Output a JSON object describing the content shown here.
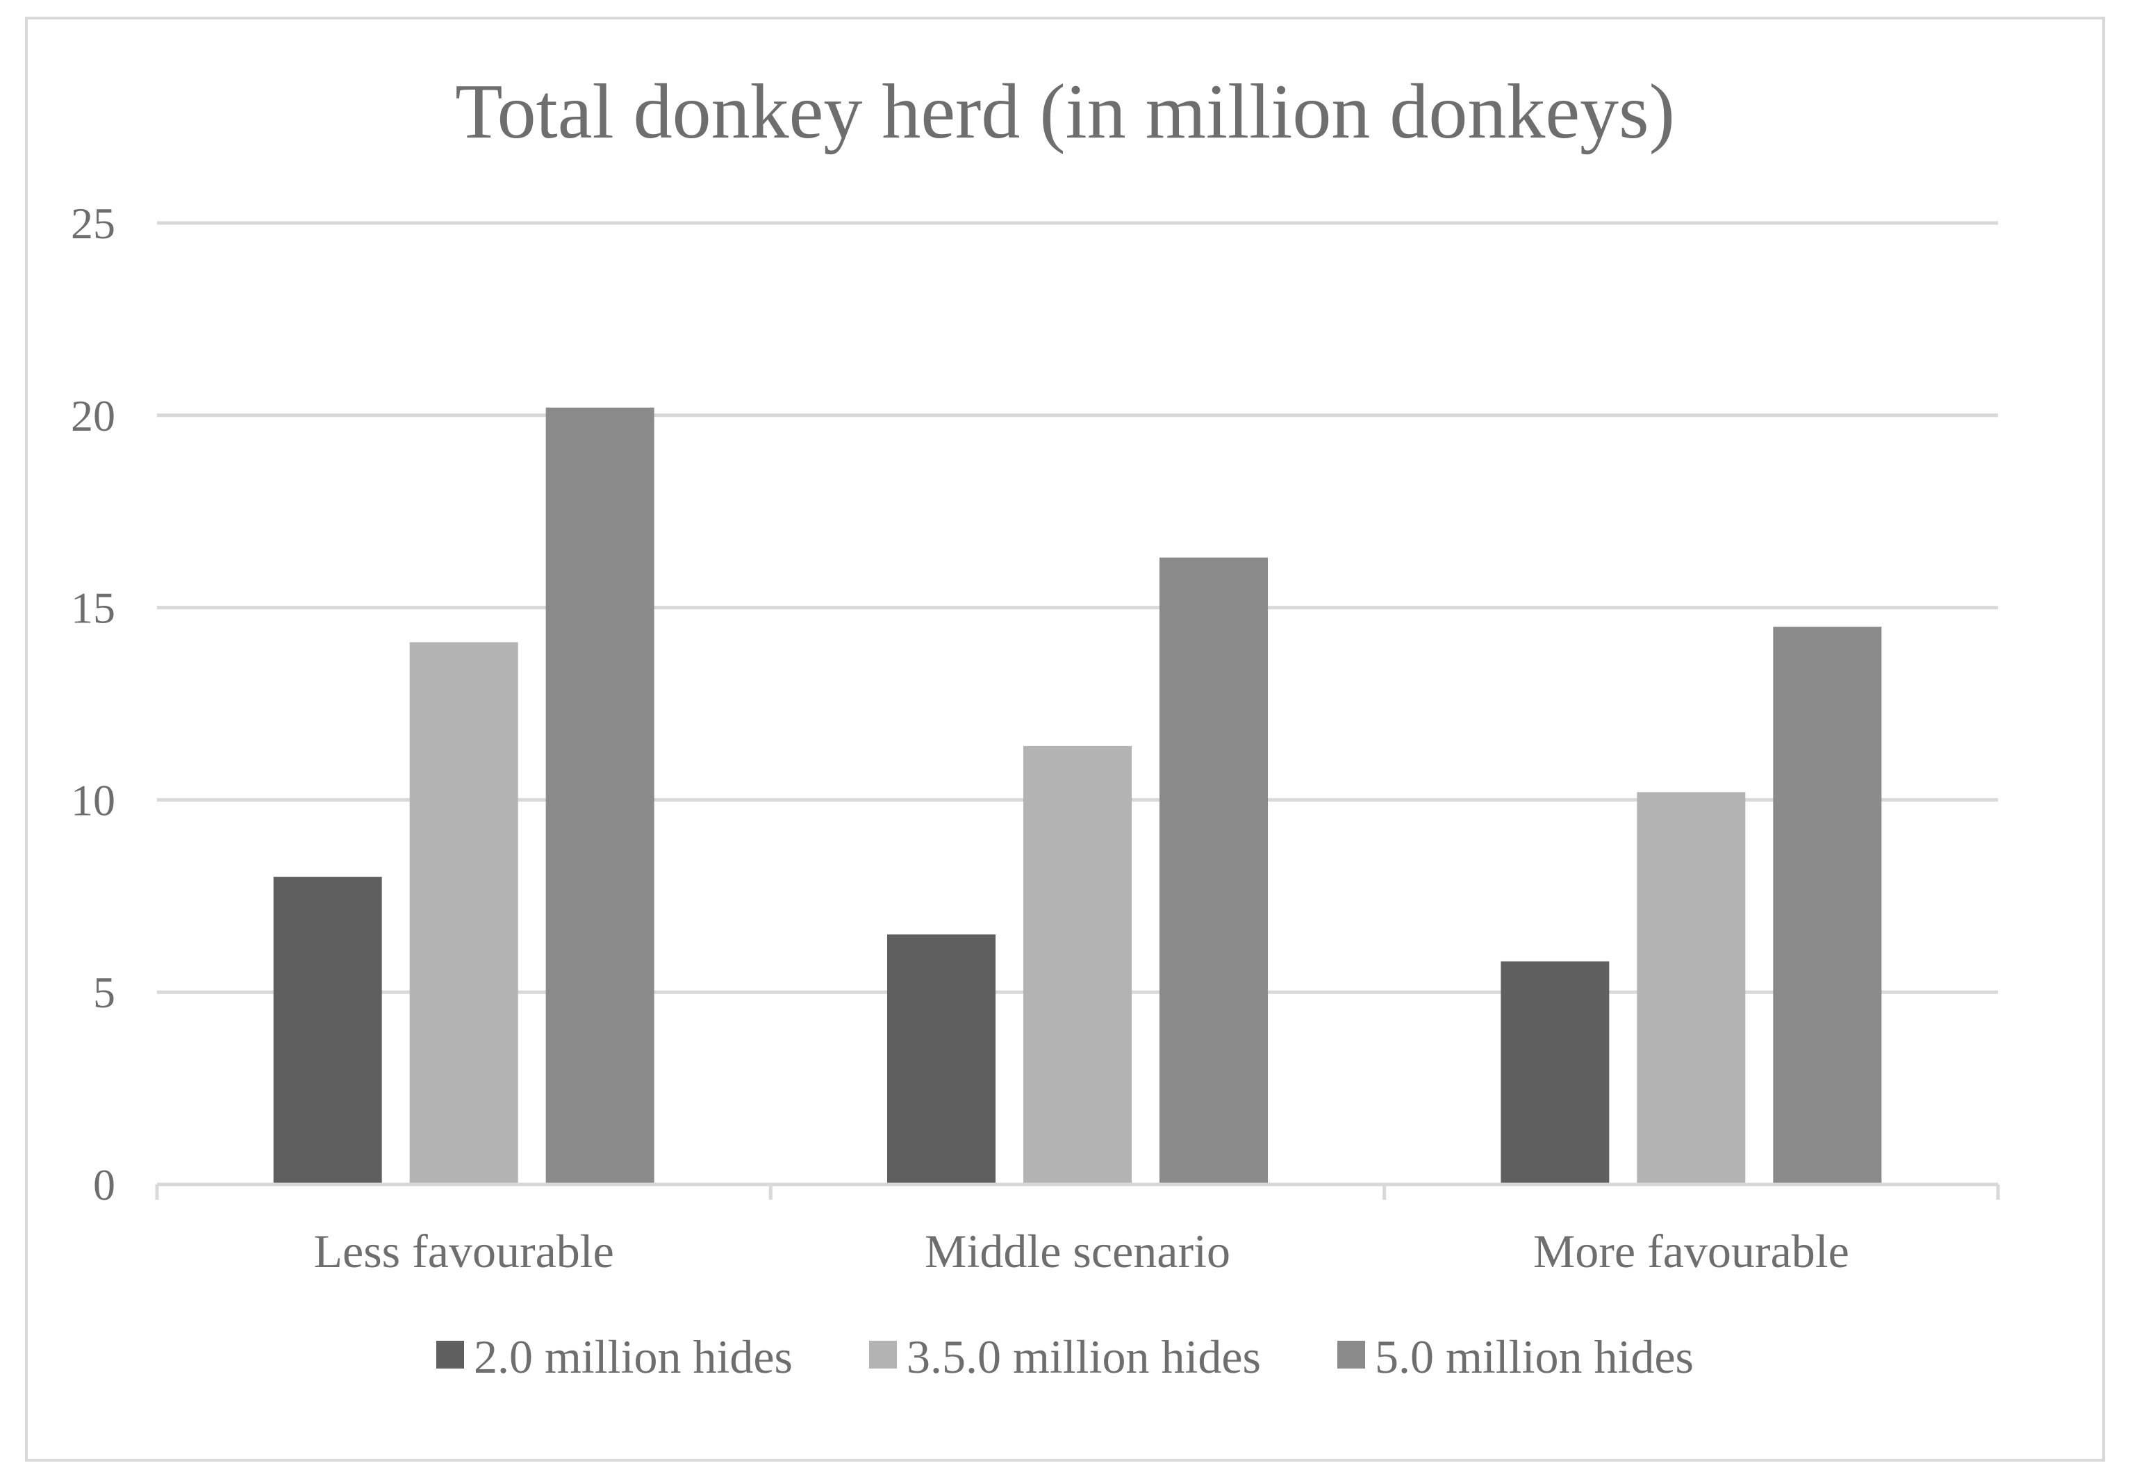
{
  "chart_data": {
    "type": "bar",
    "title": "Total donkey herd (in million donkeys)",
    "xlabel": "",
    "ylabel": "",
    "categories": [
      "Less favourable",
      "Middle scenario",
      "More favourable"
    ],
    "series": [
      {
        "name": "2.0 million hides",
        "values": [
          8.0,
          6.5,
          5.8
        ],
        "color": "#5f5f5f"
      },
      {
        "name": "3.5.0 million hides",
        "values": [
          14.1,
          11.4,
          10.2
        ],
        "color": "#b3b3b3"
      },
      {
        "name": "5.0 million hides",
        "values": [
          20.2,
          16.3,
          14.5
        ],
        "color": "#8a8a8a"
      }
    ],
    "ylim": [
      0,
      25
    ],
    "yticks": [
      "0",
      "5",
      "10",
      "15",
      "20",
      "25"
    ],
    "grid": true,
    "legend": "bottom"
  }
}
